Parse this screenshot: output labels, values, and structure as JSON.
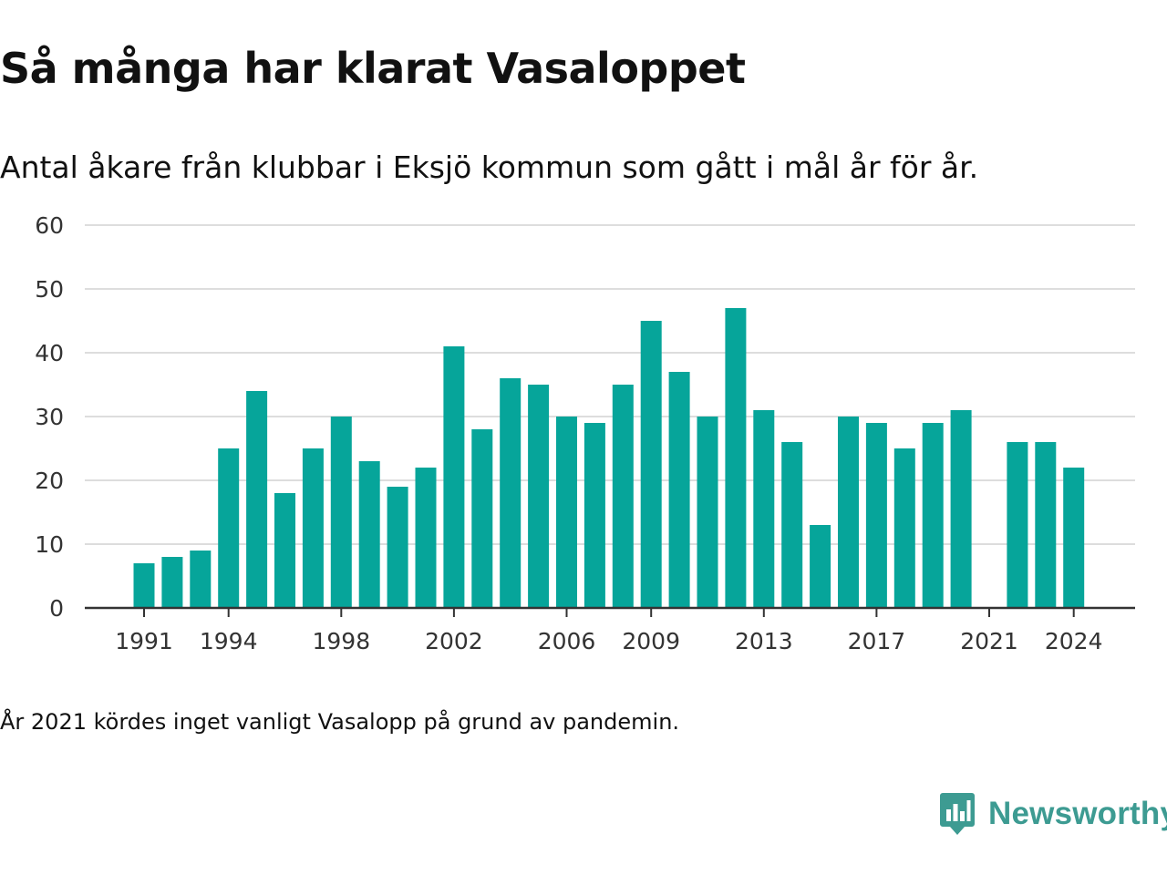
{
  "header": {
    "title": "Så många har klarat Vasaloppet",
    "subtitle": "Antal åkare från klubbar i Eksjö kommun som gått i mål år för år."
  },
  "footer": {
    "note": "År 2021 kördes inget vanligt Vasalopp på grund av pandemin.",
    "brand": "Newsworthy",
    "brand_icon": "newsworthy-logo-icon"
  },
  "colors": {
    "bar": "#06a59a",
    "grid": "#dddddd",
    "axis": "#333333",
    "brand": "#3d9b92"
  },
  "chart_data": {
    "type": "bar",
    "title": "Så många har klarat Vasaloppet",
    "subtitle": "Antal åkare från klubbar i Eksjö kommun som gått i mål år för år.",
    "xlabel": "",
    "ylabel": "",
    "ylim": [
      0,
      60
    ],
    "yticks": [
      0,
      10,
      20,
      30,
      40,
      50,
      60
    ],
    "xticks": [
      1991,
      1994,
      1998,
      2002,
      2006,
      2009,
      2013,
      2017,
      2021,
      2024
    ],
    "grid": true,
    "legend": "none",
    "categories": [
      1991,
      1992,
      1993,
      1994,
      1995,
      1996,
      1997,
      1998,
      1999,
      2000,
      2001,
      2002,
      2003,
      2004,
      2005,
      2006,
      2007,
      2008,
      2009,
      2010,
      2011,
      2012,
      2013,
      2014,
      2015,
      2016,
      2017,
      2018,
      2019,
      2020,
      2021,
      2022,
      2023,
      2024
    ],
    "values": [
      7,
      8,
      9,
      25,
      34,
      18,
      25,
      30,
      23,
      19,
      22,
      41,
      28,
      36,
      35,
      30,
      29,
      35,
      45,
      37,
      30,
      47,
      31,
      26,
      13,
      30,
      29,
      25,
      29,
      31,
      0,
      26,
      26,
      22
    ]
  }
}
